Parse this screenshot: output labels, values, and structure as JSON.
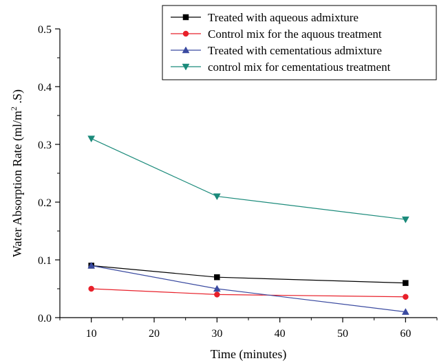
{
  "chart_data": {
    "type": "line",
    "title": "",
    "xlabel": "Time (minutes)",
    "ylabel": "Water Absorption Rate (ml/m",
    "ylabel_superscript": "2",
    "ylabel_suffix": " .S)",
    "x": [
      10,
      30,
      60
    ],
    "xlim": [
      5,
      65
    ],
    "ylim": [
      0,
      0.5
    ],
    "x_ticks": [
      "10",
      "20",
      "30",
      "40",
      "50",
      "60"
    ],
    "y_ticks": [
      "0.0",
      "0.1",
      "0.2",
      "0.3",
      "0.4",
      "0.5"
    ],
    "grid": false,
    "legend_position": "top-right",
    "series": [
      {
        "name": "Treated with aqueous admixture",
        "values": [
          0.09,
          0.07,
          0.06
        ],
        "color": "#000000",
        "marker": "square"
      },
      {
        "name": "Control mix for the aquous treatment",
        "values": [
          0.05,
          0.04,
          0.036
        ],
        "color": "#e8202a",
        "marker": "circle"
      },
      {
        "name": "Treated with cementatious admixture",
        "values": [
          0.09,
          0.05,
          0.01
        ],
        "color": "#3a4aa0",
        "marker": "triangle-up"
      },
      {
        "name": "control mix for cementatious treatment",
        "values": [
          0.31,
          0.21,
          0.17
        ],
        "color": "#1a8a7a",
        "marker": "triangle-down"
      }
    ]
  }
}
